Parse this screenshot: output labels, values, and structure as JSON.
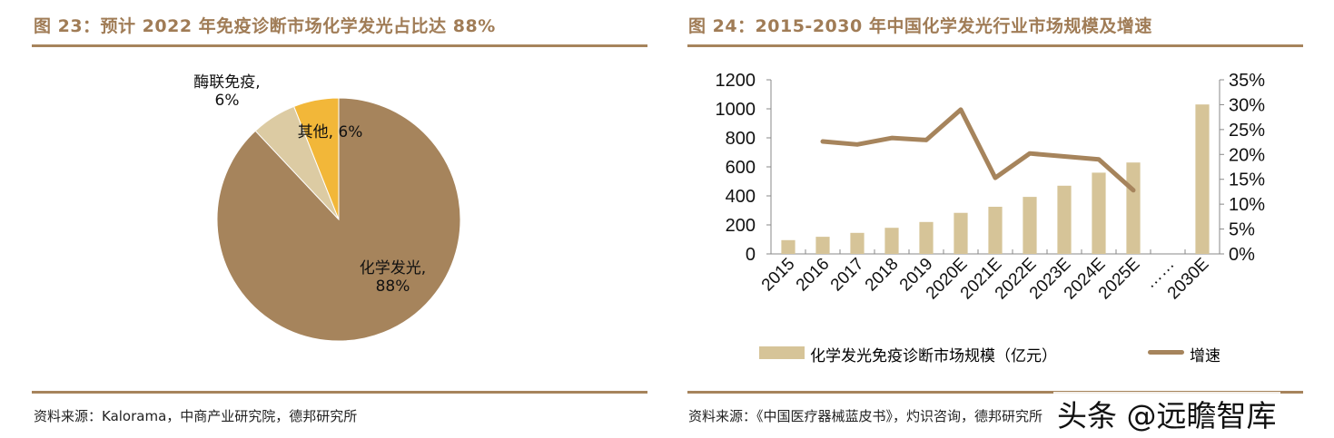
{
  "left": {
    "title": "图 23：预计 2022 年免疫诊断市场化学发光占比达 88%",
    "source": "资料来源：Kalorama，中商产业研究院，德邦研究所"
  },
  "right": {
    "title": "图 24：2015-2030 年中国化学发光行业市场规模及增速",
    "source": "资料来源：《中国医疗器械蓝皮书》，灼识咨询，德邦研究所"
  },
  "watermark": "头条 @远瞻智库",
  "chart_data": [
    {
      "type": "pie",
      "slices": [
        {
          "name": "化学发光",
          "value": 88,
          "label_line1": "化学发光,",
          "label_line2": "88%",
          "color": "#a6845c"
        },
        {
          "name": "酶联免疫",
          "value": 6,
          "label_line1": "酶联免疫,",
          "label_line2": "6%",
          "color": "#dccba3"
        },
        {
          "name": "其他",
          "value": 6,
          "label_line1": "其他, 6%",
          "label_line2": "",
          "color": "#f2b739"
        }
      ]
    },
    {
      "type": "bar+line",
      "categories": [
        "2015",
        "2016",
        "2017",
        "2018",
        "2019",
        "2020E",
        "2021E",
        "2022E",
        "2023E",
        "2024E",
        "2025E",
        "……",
        "2030E"
      ],
      "series": [
        {
          "name": "化学发光免疫诊断市场规模（亿元）",
          "type": "bar",
          "axis": "left",
          "color": "#d6c498",
          "values": [
            95,
            118,
            145,
            180,
            220,
            283,
            325,
            393,
            470,
            560,
            630,
            null,
            1030
          ]
        },
        {
          "name": "增速",
          "type": "line",
          "axis": "right",
          "color": "#a6845c",
          "values": [
            null,
            22.6,
            22.0,
            23.3,
            22.9,
            29.0,
            15.3,
            20.2,
            19.6,
            19.0,
            12.8,
            null,
            null
          ]
        }
      ],
      "left_ylim": [
        0,
        1200
      ],
      "left_ticks": [
        "0",
        "200",
        "400",
        "600",
        "800",
        "1000",
        "1200"
      ],
      "right_ylim": [
        0,
        35
      ],
      "right_ticks": [
        "0%",
        "5%",
        "10%",
        "15%",
        "20%",
        "25%",
        "30%",
        "35%"
      ],
      "legend": "bottom"
    }
  ]
}
